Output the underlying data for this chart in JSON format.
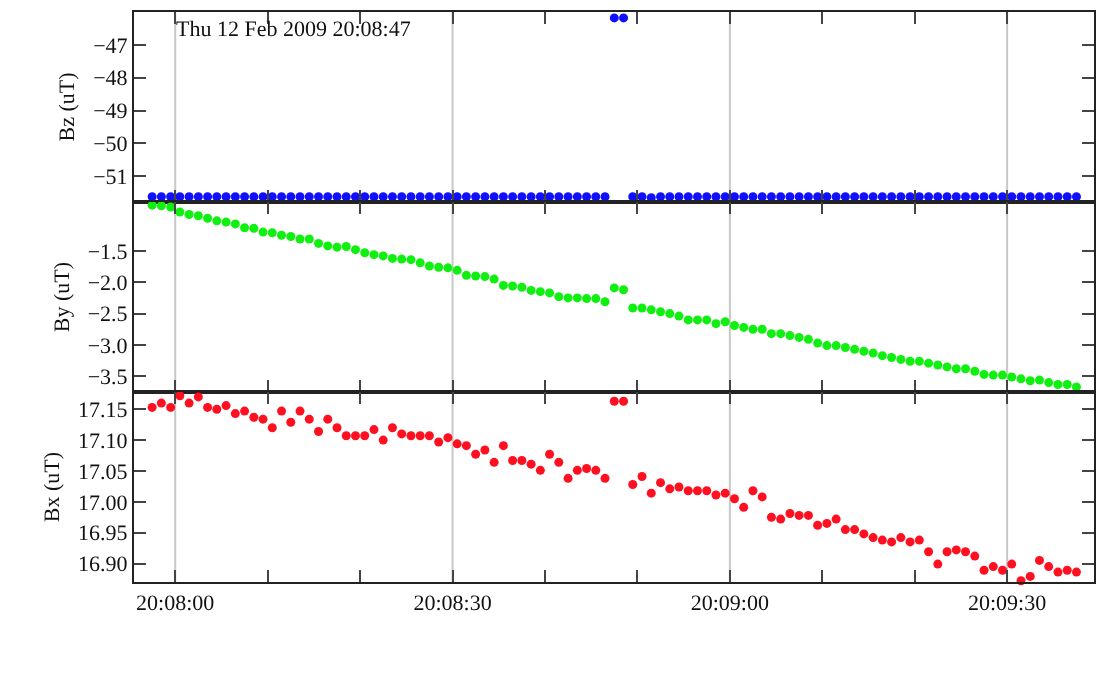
{
  "chart_data": [
    {
      "type": "scatter",
      "ylabel": "Bz (uT)",
      "annotations": [
        "Thu 12 Feb 2009 20:08:47"
      ],
      "color": "#1010ff",
      "marker": "circle",
      "grid": "x",
      "tick_labels": "y",
      "xlim": [
        20.132094,
        20.160944
      ],
      "xticks": [
        20.133333,
        {
          "value": 20.136111,
          "label": null
        },
        {
          "value": 20.138889,
          "label": null
        },
        20.141667,
        {
          "value": 20.144444,
          "label": null
        },
        {
          "value": 20.147222,
          "label": null
        },
        20.15,
        {
          "value": 20.152778,
          "label": null
        },
        {
          "value": 20.155556,
          "label": null
        },
        20.158333
      ],
      "ylim": [
        -51.78,
        -46.0
      ],
      "yticks": [
        {
          "value": -51,
          "label": "−51"
        },
        {
          "value": -50,
          "label": "−50"
        },
        {
          "value": -49,
          "label": "−49"
        },
        {
          "value": -48,
          "label": "−48"
        },
        {
          "value": -47,
          "label": "−47"
        }
      ],
      "x": [
        20.132639,
        20.132917,
        20.133195,
        20.133472,
        20.13375,
        20.134028,
        20.134306,
        20.134583,
        20.134861,
        20.135139,
        20.135417,
        20.135695,
        20.135972,
        20.13625,
        20.136528,
        20.136806,
        20.137083,
        20.137361,
        20.137639,
        20.137917,
        20.138195,
        20.138472,
        20.13875,
        20.139028,
        20.139306,
        20.139583,
        20.139861,
        20.140139,
        20.140417,
        20.140695,
        20.140972,
        20.14125,
        20.141528,
        20.141806,
        20.142083,
        20.142361,
        20.142639,
        20.142917,
        20.143195,
        20.143472,
        20.14375,
        20.144028,
        20.144306,
        20.144583,
        20.144861,
        20.145139,
        20.145417,
        20.145695,
        20.145972,
        20.14625,
        20.146528,
        20.146806,
        20.147083,
        20.147361,
        20.147639,
        20.147917,
        20.148195,
        20.148472,
        20.14875,
        20.149028,
        20.149306,
        20.149583,
        20.149861,
        20.150139,
        20.150417,
        20.150695,
        20.150972,
        20.15125,
        20.151528,
        20.151806,
        20.152083,
        20.152361,
        20.152639,
        20.152917,
        20.153195,
        20.153472,
        20.15375,
        20.154028,
        20.154306,
        20.154583,
        20.154861,
        20.155139,
        20.155417,
        20.155695,
        20.155972,
        20.15625,
        20.156528,
        20.156806,
        20.157083,
        20.157361,
        20.157639,
        20.157917,
        20.158195,
        20.158472,
        20.15875,
        20.159028,
        20.159306,
        20.159583,
        20.159861,
        20.160139,
        20.160417
      ],
      "values": [
        -51.62,
        -51.62,
        -51.62,
        -51.62,
        -51.62,
        -51.62,
        -51.62,
        -51.62,
        -51.62,
        -51.62,
        -51.62,
        -51.62,
        -51.62,
        -51.62,
        -51.62,
        -51.62,
        -51.62,
        -51.62,
        -51.62,
        -51.62,
        -51.62,
        -51.62,
        -51.62,
        -51.62,
        -51.62,
        -51.62,
        -51.62,
        -51.62,
        -51.62,
        -51.62,
        -51.62,
        -51.62,
        -51.62,
        -51.62,
        -51.62,
        -51.62,
        -51.62,
        -51.62,
        -51.62,
        -51.62,
        -51.62,
        -51.62,
        -51.62,
        -51.62,
        -51.62,
        -51.62,
        -51.62,
        -51.62,
        -51.62,
        -51.62,
        -46.18,
        -46.18,
        -51.62,
        -51.62,
        -51.65,
        -51.62,
        -51.62,
        -51.62,
        -51.62,
        -51.62,
        -51.62,
        -51.62,
        -51.62,
        -51.62,
        -51.62,
        -51.62,
        -51.62,
        -51.62,
        -51.62,
        -51.62,
        -51.62,
        -51.62,
        -51.62,
        -51.62,
        -51.62,
        -51.62,
        -51.62,
        -51.62,
        -51.62,
        -51.62,
        -51.62,
        -51.62,
        -51.62,
        -51.62,
        -51.62,
        -51.62,
        -51.62,
        -51.62,
        -51.62,
        -51.62,
        -51.62,
        -51.62,
        -51.62,
        -51.62,
        -51.62,
        -51.62,
        -51.62,
        -51.62,
        -51.62,
        -51.62,
        -51.62
      ]
    },
    {
      "type": "scatter",
      "ylabel": "By (uT)",
      "color": "#10f010",
      "marker": "circle",
      "grid": "x",
      "tick_labels": "y",
      "xlim": [
        20.132094,
        20.160944
      ],
      "xticks": [
        20.133333,
        {
          "value": 20.136111,
          "label": null
        },
        {
          "value": 20.138889,
          "label": null
        },
        20.141667,
        {
          "value": 20.144444,
          "label": null
        },
        {
          "value": 20.147222,
          "label": null
        },
        20.15,
        {
          "value": 20.152778,
          "label": null
        },
        {
          "value": 20.155556,
          "label": null
        },
        20.158333
      ],
      "ylim": [
        -3.75,
        -0.72
      ],
      "yticks": [
        {
          "value": -3.5,
          "label": "−3.5"
        },
        {
          "value": -3.0,
          "label": "−3.0"
        },
        {
          "value": -2.5,
          "label": "−2.5"
        },
        {
          "value": -2.0,
          "label": "−2.0"
        },
        {
          "value": -1.5,
          "label": "−1.5"
        }
      ],
      "x": [
        20.132639,
        20.132917,
        20.133195,
        20.133472,
        20.13375,
        20.134028,
        20.134306,
        20.134583,
        20.134861,
        20.135139,
        20.135417,
        20.135695,
        20.135972,
        20.13625,
        20.136528,
        20.136806,
        20.137083,
        20.137361,
        20.137639,
        20.137917,
        20.138195,
        20.138472,
        20.13875,
        20.139028,
        20.139306,
        20.139583,
        20.139861,
        20.140139,
        20.140417,
        20.140695,
        20.140972,
        20.14125,
        20.141528,
        20.141806,
        20.142083,
        20.142361,
        20.142639,
        20.142917,
        20.143195,
        20.143472,
        20.14375,
        20.144028,
        20.144306,
        20.144583,
        20.144861,
        20.145139,
        20.145417,
        20.145695,
        20.145972,
        20.14625,
        20.146528,
        20.146806,
        20.147083,
        20.147361,
        20.147639,
        20.147917,
        20.148195,
        20.148472,
        20.14875,
        20.149028,
        20.149306,
        20.149583,
        20.149861,
        20.150139,
        20.150417,
        20.150695,
        20.150972,
        20.15125,
        20.151528,
        20.151806,
        20.152083,
        20.152361,
        20.152639,
        20.152917,
        20.153195,
        20.153472,
        20.15375,
        20.154028,
        20.154306,
        20.154583,
        20.154861,
        20.155139,
        20.155417,
        20.155695,
        20.155972,
        20.15625,
        20.156528,
        20.156806,
        20.157083,
        20.157361,
        20.157639,
        20.157917,
        20.158195,
        20.158472,
        20.15875,
        20.159028,
        20.159306,
        20.159583,
        20.159861,
        20.160139,
        20.160417
      ],
      "values": [
        -0.77,
        -0.78,
        -0.8,
        -0.88,
        -0.92,
        -0.94,
        -0.98,
        -1.02,
        -1.04,
        -1.07,
        -1.13,
        -1.14,
        -1.2,
        -1.21,
        -1.25,
        -1.27,
        -1.31,
        -1.31,
        -1.38,
        -1.42,
        -1.44,
        -1.43,
        -1.48,
        -1.53,
        -1.56,
        -1.58,
        -1.62,
        -1.63,
        -1.64,
        -1.69,
        -1.74,
        -1.76,
        -1.77,
        -1.81,
        -1.89,
        -1.9,
        -1.91,
        -1.95,
        -2.05,
        -2.06,
        -2.08,
        -2.13,
        -2.15,
        -2.17,
        -2.23,
        -2.25,
        -2.25,
        -2.26,
        -2.26,
        -2.31,
        -2.09,
        -2.12,
        -2.41,
        -2.41,
        -2.44,
        -2.47,
        -2.5,
        -2.54,
        -2.6,
        -2.6,
        -2.6,
        -2.66,
        -2.63,
        -2.69,
        -2.72,
        -2.75,
        -2.75,
        -2.82,
        -2.82,
        -2.85,
        -2.88,
        -2.91,
        -2.97,
        -3.01,
        -3.01,
        -3.04,
        -3.07,
        -3.1,
        -3.13,
        -3.17,
        -3.2,
        -3.23,
        -3.26,
        -3.26,
        -3.29,
        -3.32,
        -3.35,
        -3.38,
        -3.38,
        -3.42,
        -3.47,
        -3.48,
        -3.48,
        -3.51,
        -3.54,
        -3.57,
        -3.56,
        -3.6,
        -3.63,
        -3.63,
        -3.67
      ]
    },
    {
      "type": "scatter",
      "ylabel": "Bx (uT)",
      "color": "#ff1020",
      "marker": "circle",
      "grid": "x",
      "xlim": [
        20.132094,
        20.160944
      ],
      "xticks": [
        {
          "value": 20.133333,
          "label": "20:08:00"
        },
        {
          "value": 20.136111,
          "label": null
        },
        {
          "value": 20.138889,
          "label": null
        },
        {
          "value": 20.141667,
          "label": "20:08:30"
        },
        {
          "value": 20.144444,
          "label": null
        },
        {
          "value": 20.147222,
          "label": null
        },
        {
          "value": 20.15,
          "label": "20:09:00"
        },
        {
          "value": 20.152778,
          "label": null
        },
        {
          "value": 20.155556,
          "label": null
        },
        {
          "value": 20.158333,
          "label": "20:09:30"
        }
      ],
      "ylim": [
        16.87,
        17.178
      ],
      "yticks": [
        {
          "value": 16.9,
          "label": "16.90"
        },
        {
          "value": 16.95,
          "label": "16.95"
        },
        {
          "value": 17.0,
          "label": "17.00"
        },
        {
          "value": 17.05,
          "label": "17.05"
        },
        {
          "value": 17.1,
          "label": "17.10"
        },
        {
          "value": 17.15,
          "label": "17.15"
        }
      ],
      "x": [
        20.132639,
        20.132917,
        20.133195,
        20.133472,
        20.13375,
        20.134028,
        20.134306,
        20.134583,
        20.134861,
        20.135139,
        20.135417,
        20.135695,
        20.135972,
        20.13625,
        20.136528,
        20.136806,
        20.137083,
        20.137361,
        20.137639,
        20.137917,
        20.138195,
        20.138472,
        20.13875,
        20.139028,
        20.139306,
        20.139583,
        20.139861,
        20.140139,
        20.140417,
        20.140695,
        20.140972,
        20.14125,
        20.141528,
        20.141806,
        20.142083,
        20.142361,
        20.142639,
        20.142917,
        20.143195,
        20.143472,
        20.14375,
        20.144028,
        20.144306,
        20.144583,
        20.144861,
        20.145139,
        20.145417,
        20.145695,
        20.145972,
        20.14625,
        20.146528,
        20.146806,
        20.147083,
        20.147361,
        20.147639,
        20.147917,
        20.148195,
        20.148472,
        20.14875,
        20.149028,
        20.149306,
        20.149583,
        20.149861,
        20.150139,
        20.150417,
        20.150695,
        20.150972,
        20.15125,
        20.151528,
        20.151806,
        20.152083,
        20.152361,
        20.152639,
        20.152917,
        20.153195,
        20.153472,
        20.15375,
        20.154028,
        20.154306,
        20.154583,
        20.154861,
        20.155139,
        20.155417,
        20.155695,
        20.155972,
        20.15625,
        20.156528,
        20.156806,
        20.157083,
        20.157361,
        20.157639,
        20.157917,
        20.158195,
        20.158472,
        20.15875,
        20.159028,
        20.159306,
        20.159583,
        20.159861,
        20.160139,
        20.160417
      ],
      "values": [
        17.153,
        17.16,
        17.153,
        17.172,
        17.16,
        17.17,
        17.153,
        17.15,
        17.156,
        17.143,
        17.147,
        17.137,
        17.134,
        17.12,
        17.147,
        17.129,
        17.147,
        17.134,
        17.114,
        17.134,
        17.12,
        17.107,
        17.107,
        17.107,
        17.117,
        17.1,
        17.12,
        17.11,
        17.107,
        17.107,
        17.107,
        17.097,
        17.104,
        17.094,
        17.091,
        17.077,
        17.084,
        17.064,
        17.091,
        17.067,
        17.067,
        17.061,
        17.051,
        17.077,
        17.064,
        17.038,
        17.051,
        17.054,
        17.051,
        17.038,
        17.163,
        17.163,
        17.028,
        17.041,
        17.014,
        17.031,
        17.021,
        17.024,
        17.018,
        17.018,
        17.018,
        17.011,
        17.014,
        17.005,
        16.991,
        17.018,
        17.008,
        16.975,
        16.972,
        16.981,
        16.978,
        16.978,
        16.962,
        16.965,
        16.972,
        16.955,
        16.955,
        16.948,
        16.942,
        16.938,
        16.935,
        16.942,
        16.935,
        16.938,
        16.919,
        16.899,
        16.919,
        16.922,
        16.919,
        16.912,
        16.889,
        16.895,
        16.889,
        16.899,
        16.872,
        16.879,
        16.905,
        16.895,
        16.886,
        16.889,
        16.886
      ]
    }
  ]
}
